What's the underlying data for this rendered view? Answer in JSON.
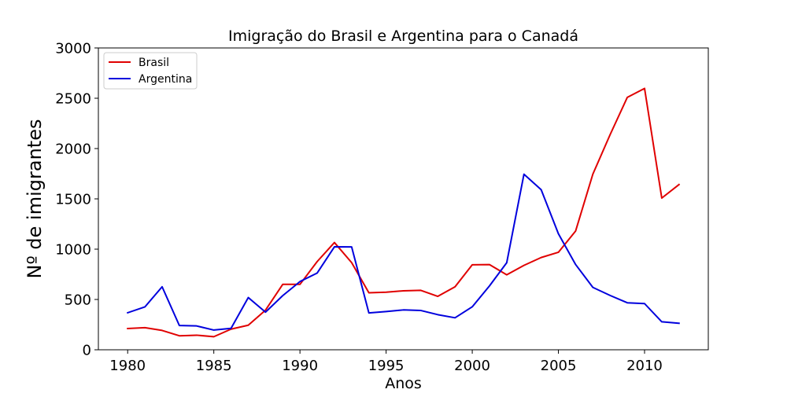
{
  "chart_data": {
    "type": "line",
    "title": "Imigração do Brasil e Argentina para o Canadá",
    "xlabel": "Anos",
    "ylabel": "Nº de imigrantes",
    "xlim": [
      1978.3,
      2013.7
    ],
    "ylim": [
      0,
      3000
    ],
    "xticks": [
      1980,
      1985,
      1990,
      1995,
      2000,
      2005,
      2010
    ],
    "yticks": [
      0,
      500,
      1000,
      1500,
      2000,
      2500,
      3000
    ],
    "grid": false,
    "legend_position": "upper-left",
    "x": [
      1980,
      1981,
      1982,
      1983,
      1984,
      1985,
      1986,
      1987,
      1988,
      1989,
      1990,
      1991,
      1992,
      1993,
      1994,
      1995,
      1996,
      1997,
      1998,
      1999,
      2000,
      2001,
      2002,
      2003,
      2004,
      2005,
      2006,
      2007,
      2008,
      2009,
      2010,
      2011,
      2012
    ],
    "series": [
      {
        "name": "Brasil",
        "color": "#e00000",
        "values": [
          211,
          220,
          192,
          139,
          145,
          130,
          205,
          244,
          394,
          650,
          650,
          877,
          1066,
          866,
          566,
          572,
          586,
          591,
          531,
          626,
          845,
          847,
          745,
          839,
          917,
          969,
          1181,
          1746,
          2138,
          2509,
          2598,
          1508,
          1642
        ]
      },
      {
        "name": "Argentina",
        "color": "#0000dd",
        "values": [
          368,
          426,
          626,
          241,
          237,
          196,
          213,
          519,
          374,
          538,
          678,
          763,
          1023,
          1022,
          366,
          380,
          396,
          391,
          349,
          318,
          427,
          635,
          865,
          1745,
          1591,
          1153,
          847,
          620,
          540,
          467,
          459,
          278,
          263
        ]
      }
    ]
  }
}
